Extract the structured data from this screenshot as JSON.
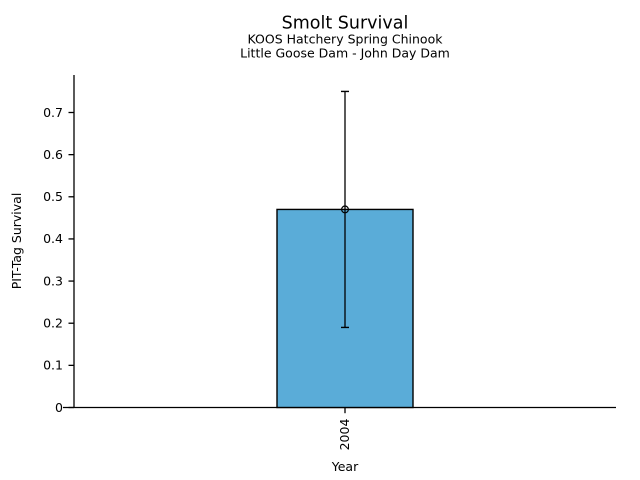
{
  "page": {
    "background": "#ffffff",
    "text_color": "#000000"
  },
  "chart_data": {
    "type": "bar",
    "title": "Smolt Survival",
    "subtitle_lines": [
      "KOOS Hatchery Spring Chinook",
      "Little Goose Dam - John Day Dam"
    ],
    "xlabel": "Year",
    "ylabel": "PIT-Tag Survival",
    "categories": [
      "2004"
    ],
    "values": [
      0.47
    ],
    "error_bars": {
      "low": [
        0.19
      ],
      "high": [
        0.75
      ]
    },
    "point_marker": "open-circle",
    "yticks": [
      0,
      0.1,
      0.2,
      0.3,
      0.4,
      0.5,
      0.6,
      0.7
    ],
    "ytick_labels": [
      "0",
      "0.1",
      "0.2",
      "0.3",
      "0.4",
      "0.5",
      "0.6",
      "0.7"
    ],
    "ylim": [
      0,
      0.79
    ],
    "grid": false,
    "legend": "none",
    "bar_color": "#5AACD8",
    "bar_edge_color": "#000000",
    "axis_color": "#000000"
  }
}
